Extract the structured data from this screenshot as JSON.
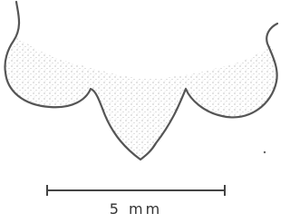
{
  "scale_bar": {
    "label": "5 mm"
  }
}
